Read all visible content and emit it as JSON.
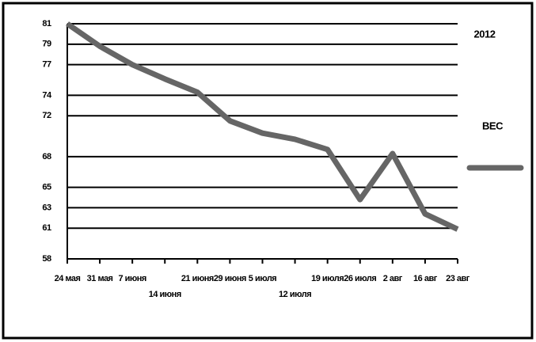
{
  "chart_data": {
    "type": "line",
    "title": "2012",
    "categories": [
      "24 мая",
      "31 мая",
      "7 июня",
      "14 июня",
      "21 июня",
      "29 июня",
      "5 июля",
      "12 июля",
      "19 июля",
      "26 июля",
      "2 авг",
      "16 авг",
      "23 авг"
    ],
    "series": [
      {
        "name": "ВЕС",
        "color": "#666666",
        "values": [
          81,
          78.8,
          77,
          75.6,
          74.3,
          71.5,
          70.3,
          69.7,
          68.7,
          63.8,
          68.3,
          62.4,
          60.9
        ]
      }
    ],
    "ylim": [
      58,
      81
    ],
    "yticks": [
      58,
      61,
      63,
      65,
      68,
      72,
      74,
      77,
      79,
      81
    ],
    "grid": true,
    "legend": "right"
  }
}
